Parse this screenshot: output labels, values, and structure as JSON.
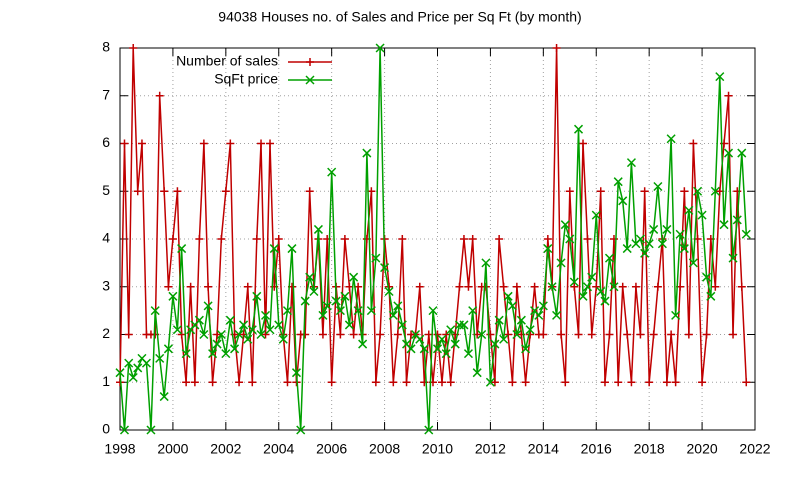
{
  "chart_data": {
    "type": "line",
    "title": "94038 Houses no. of Sales and Price per Sq Ft (by month)",
    "x": [
      1998,
      1998.17,
      1998.33,
      1998.5,
      1998.67,
      1998.83,
      1999,
      1999.17,
      1999.33,
      1999.5,
      1999.67,
      1999.83,
      2000,
      2000.17,
      2000.33,
      2000.5,
      2000.67,
      2000.83,
      2001,
      2001.17,
      2001.33,
      2001.5,
      2001.67,
      2001.83,
      2002,
      2002.17,
      2002.33,
      2002.5,
      2002.67,
      2002.83,
      2003,
      2003.17,
      2003.33,
      2003.5,
      2003.67,
      2003.83,
      2004,
      2004.17,
      2004.33,
      2004.5,
      2004.67,
      2004.83,
      2005,
      2005.17,
      2005.33,
      2005.5,
      2005.67,
      2005.83,
      2006,
      2006.17,
      2006.33,
      2006.5,
      2006.67,
      2006.83,
      2007,
      2007.17,
      2007.33,
      2007.5,
      2007.67,
      2007.83,
      2008,
      2008.17,
      2008.33,
      2008.5,
      2008.67,
      2008.83,
      2009,
      2009.17,
      2009.33,
      2009.5,
      2009.67,
      2009.83,
      2010,
      2010.17,
      2010.33,
      2010.5,
      2010.67,
      2010.83,
      2011,
      2011.17,
      2011.33,
      2011.5,
      2011.67,
      2011.83,
      2012,
      2012.17,
      2012.33,
      2012.5,
      2012.67,
      2012.83,
      2013,
      2013.17,
      2013.33,
      2013.5,
      2013.67,
      2013.83,
      2014,
      2014.17,
      2014.33,
      2014.5,
      2014.67,
      2014.83,
      2015,
      2015.17,
      2015.33,
      2015.5,
      2015.67,
      2015.83,
      2016,
      2016.17,
      2016.33,
      2016.5,
      2016.67,
      2016.83,
      2017,
      2017.17,
      2017.33,
      2017.5,
      2017.67,
      2017.83,
      2018,
      2018.17,
      2018.33,
      2018.5,
      2018.67,
      2018.83,
      2019,
      2019.17,
      2019.33,
      2019.5,
      2019.67,
      2019.83,
      2020,
      2020.17,
      2020.33,
      2020.5,
      2020.67,
      2020.83,
      2021,
      2021.17,
      2021.33,
      2021.5,
      2021.67
    ],
    "series": [
      {
        "name": "Number of sales",
        "color": "#c00000",
        "marker": "plus",
        "values": [
          1,
          6,
          2,
          8,
          5,
          6,
          2,
          2,
          2,
          7,
          5,
          3,
          4,
          5,
          2,
          1,
          3,
          1,
          4,
          6,
          3,
          1,
          2,
          4,
          5,
          6,
          2,
          1,
          2,
          3,
          1,
          4,
          6,
          2,
          6,
          3,
          4,
          2,
          1,
          3,
          1,
          2,
          2,
          5,
          3,
          4,
          2,
          4,
          1,
          3,
          2,
          4,
          3,
          2,
          3,
          2,
          4,
          5,
          1,
          2,
          4,
          3,
          1,
          2,
          4,
          1,
          2,
          2,
          3,
          1,
          2,
          1,
          2,
          1,
          2,
          1,
          2,
          3,
          4,
          3,
          4,
          2,
          3,
          3,
          2,
          1,
          4,
          3,
          2,
          1,
          3,
          2,
          1,
          2,
          3,
          2,
          2,
          4,
          3,
          8,
          2,
          1,
          5,
          3,
          2,
          6,
          4,
          2,
          3,
          5,
          1,
          2,
          4,
          1,
          3,
          2,
          1,
          3,
          2,
          5,
          1,
          2,
          3,
          4,
          1,
          2,
          1,
          3,
          5,
          2,
          6,
          4,
          1,
          2,
          4,
          3,
          5,
          6,
          7,
          2,
          5,
          3,
          1
        ]
      },
      {
        "name": "SqFt price",
        "color": "#00a000",
        "marker": "cross",
        "values": [
          1.2,
          0,
          1.4,
          1.1,
          1.3,
          1.5,
          1.4,
          0,
          2.5,
          1.5,
          0.7,
          1.7,
          2.8,
          2.1,
          3.8,
          1.6,
          2.1,
          2.2,
          2.3,
          2.0,
          2.6,
          1.6,
          1.8,
          2.0,
          1.6,
          2.3,
          1.7,
          2.0,
          2.2,
          1.9,
          2.1,
          2.8,
          2.0,
          2.4,
          2.1,
          3.8,
          2.2,
          1.9,
          2.5,
          3.8,
          1.2,
          0,
          2.7,
          3.2,
          2.9,
          4.2,
          2.4,
          2.6,
          5.4,
          2.7,
          2.5,
          2.8,
          2.2,
          3.2,
          2.5,
          1.8,
          5.8,
          2.5,
          3.6,
          8,
          3.4,
          2.9,
          2.4,
          2.6,
          2.2,
          1.8,
          1.7,
          2.0,
          1.9,
          1.7,
          0,
          2.5,
          1.7,
          1.9,
          1.6,
          2.1,
          1.8,
          2.2,
          2.2,
          1.6,
          2.5,
          1.2,
          2.0,
          3.5,
          1.0,
          1.8,
          2.3,
          1.9,
          2.8,
          2.6,
          2.0,
          2.3,
          1.7,
          2.1,
          2.5,
          2.4,
          2.6,
          3.8,
          3.0,
          2.4,
          3.5,
          4.3,
          4.0,
          3.1,
          6.3,
          2.8,
          3.0,
          3.2,
          4.5,
          2.9,
          2.7,
          3.6,
          3.0,
          5.2,
          4.8,
          3.8,
          5.6,
          3.9,
          4.0,
          3.7,
          3.9,
          4.2,
          5.1,
          3.9,
          4.2,
          6.1,
          2.4,
          4.1,
          3.8,
          4.6,
          3.5,
          5.0,
          4.5,
          3.2,
          2.8,
          5.0,
          7.4,
          4.3,
          5.8,
          3.6,
          4.4,
          5.8,
          4.1
        ]
      }
    ],
    "xlim": [
      1998,
      2022
    ],
    "xticks": [
      1998,
      2000,
      2002,
      2004,
      2006,
      2008,
      2010,
      2012,
      2014,
      2016,
      2018,
      2020,
      2022
    ],
    "ylim": [
      0,
      8
    ],
    "yticks": [
      0,
      1,
      2,
      3,
      4,
      5,
      6,
      7,
      8
    ],
    "grid": true,
    "legend": "top-left"
  }
}
